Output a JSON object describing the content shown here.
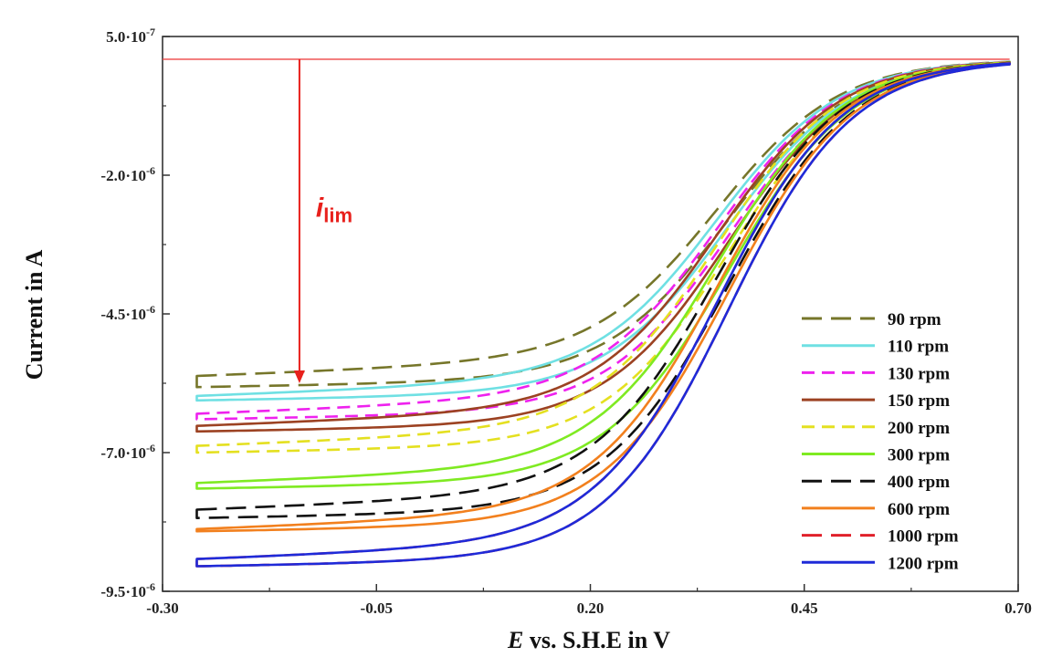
{
  "chart_data": {
    "type": "line",
    "title": "",
    "xlabel_italic": "E",
    "xlabel_rest": " vs. S.H.E in V",
    "ylabel": "Current in A",
    "xlim": [
      -0.3,
      0.7
    ],
    "ylim": [
      -9.5e-06,
      5e-07
    ],
    "x_ticks": [
      {
        "value": -0.3,
        "label": "-0.30"
      },
      {
        "value": -0.05,
        "label": "-0.05"
      },
      {
        "value": 0.2,
        "label": "0.20"
      },
      {
        "value": 0.45,
        "label": "0.45"
      },
      {
        "value": 0.7,
        "label": "0.70"
      }
    ],
    "y_ticks": [
      {
        "value": 5e-07,
        "mant": "5.0·10",
        "exp": "-7"
      },
      {
        "value": -2e-06,
        "mant": "-2.0·10",
        "exp": "-6"
      },
      {
        "value": -4.5e-06,
        "mant": "-4.5·10",
        "exp": "-6"
      },
      {
        "value": -7e-06,
        "mant": "-7.0·10",
        "exp": "-6"
      },
      {
        "value": -9.5e-06,
        "mant": "-9.5·10",
        "exp": "-6"
      }
    ],
    "plateau_current": 9e-08,
    "half_wave_potential": 0.35,
    "x_start": -0.26,
    "x_end": 0.69,
    "annotation": {
      "text_italic": "i",
      "text_sub": "lim",
      "color": "#e8201c",
      "arrow_x": -0.14,
      "from_current": 9e-08,
      "to_current": -5.75e-06
    },
    "legend_position": "bottom-right",
    "series": [
      {
        "name": "90 rpm",
        "color": "#76762a",
        "dash": "long",
        "i_limit_forward": -5.62e-06,
        "i_limit_reverse": -5.82e-06
      },
      {
        "name": "110 rpm",
        "color": "#6fe0e3",
        "dash": "solid",
        "i_limit_forward": -5.98e-06,
        "i_limit_reverse": -6.06e-06
      },
      {
        "name": "130 rpm",
        "color": "#ee22ee",
        "dash": "medium",
        "i_limit_forward": -6.3e-06,
        "i_limit_reverse": -6.4e-06
      },
      {
        "name": "150 rpm",
        "color": "#9c4222",
        "dash": "solid",
        "i_limit_forward": -6.52e-06,
        "i_limit_reverse": -6.62e-06
      },
      {
        "name": "200 rpm",
        "color": "#e4e020",
        "dash": "medium",
        "i_limit_forward": -6.88e-06,
        "i_limit_reverse": -7e-06
      },
      {
        "name": "300 rpm",
        "color": "#7fea22",
        "dash": "solid",
        "i_limit_forward": -7.55e-06,
        "i_limit_reverse": -7.65e-06
      },
      {
        "name": "400 rpm",
        "color": "#111111",
        "dash": "long",
        "i_limit_forward": -8.03e-06,
        "i_limit_reverse": -8.18e-06
      },
      {
        "name": "600 rpm",
        "color": "#f2801e",
        "dash": "solid",
        "i_limit_forward": -8.38e-06,
        "i_limit_reverse": -8.42e-06
      },
      {
        "name": "1000 rpm",
        "color": "#e0202a",
        "dash": "long",
        "i_limit_forward": -8.92e-06,
        "i_limit_reverse": -9.05e-06
      },
      {
        "name": "1200 rpm",
        "color": "#1f2ad8",
        "dash": "solid",
        "i_limit_forward": -8.92e-06,
        "i_limit_reverse": -9.05e-06
      }
    ]
  }
}
